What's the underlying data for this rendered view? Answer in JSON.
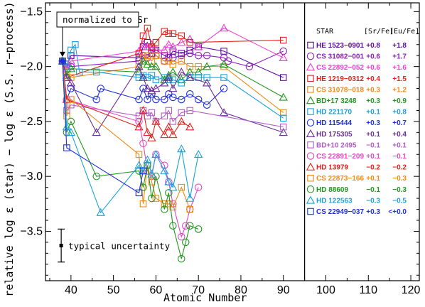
{
  "chart_data": {
    "type": "line",
    "title": "",
    "xlabel": "Atomic Number",
    "ylabel": "relative log ε (star) − log ε (S.S. r−process)",
    "xlim": [
      34,
      122
    ],
    "ylim": [
      -3.95,
      -1.42
    ],
    "xticks": [
      40,
      50,
      60,
      70,
      80,
      90,
      100,
      110,
      120
    ],
    "xtick_labels": [
      "40",
      "50",
      "60",
      "70",
      "80",
      "90",
      "100",
      "110",
      "120"
    ],
    "yticks": [
      -3.5,
      -3.0,
      -2.5,
      -2.0,
      -1.5
    ],
    "ytick_labels": [
      "−3.5",
      "−3.0",
      "−2.5",
      "−2.0",
      "−1.5"
    ],
    "divider_x": 95,
    "annotation_normalized": "normalized to Sr",
    "annotation_uncertainty": "typical uncertainty",
    "normalization_point": {
      "x": 38,
      "y": -1.95
    },
    "uncertainty_bar": {
      "x": 37.7,
      "y": -3.63,
      "err": 0.15
    },
    "legend": {
      "header_star": "STAR",
      "header_srfe": "[Sr/Fe]",
      "header_eufe": "[Eu/Fe]",
      "placement": "right"
    },
    "series": [
      {
        "name": "HE 1523−0901",
        "srfe": "+0.8",
        "eufe": "+1.8",
        "color": "#5a0aa0",
        "marker": "square",
        "points": [
          [
            38,
            -1.95
          ],
          [
            39,
            -2.0
          ],
          [
            40,
            -1.9
          ],
          [
            56,
            -1.92
          ],
          [
            57,
            -1.82
          ],
          [
            58,
            -1.78
          ],
          [
            59,
            -1.88
          ],
          [
            60,
            -1.85
          ],
          [
            62,
            -1.9
          ],
          [
            63,
            -1.92
          ],
          [
            64,
            -1.86
          ],
          [
            66,
            -1.88
          ],
          [
            68,
            -1.85
          ],
          [
            70,
            -1.82
          ],
          [
            76,
            -1.86
          ],
          [
            90,
            -2.1
          ]
        ]
      },
      {
        "name": "CS 31082−001",
        "srfe": "+0.6",
        "eufe": "+1.7",
        "color": "#8f1fbf",
        "marker": "circle",
        "points": [
          [
            38,
            -1.95
          ],
          [
            39,
            -1.98
          ],
          [
            40,
            -2.0
          ],
          [
            56,
            -1.95
          ],
          [
            57,
            -1.9
          ],
          [
            58,
            -1.92
          ],
          [
            59,
            -1.85
          ],
          [
            60,
            -1.9
          ],
          [
            62,
            -1.95
          ],
          [
            63,
            -1.92
          ],
          [
            64,
            -1.92
          ],
          [
            66,
            -1.9
          ],
          [
            68,
            -1.88
          ],
          [
            70,
            -1.9
          ],
          [
            72,
            -1.9
          ],
          [
            76,
            -1.92
          ],
          [
            77,
            -1.95
          ],
          [
            82,
            -2.0
          ],
          [
            90,
            -1.86
          ]
        ]
      },
      {
        "name": "CS 22892−052",
        "srfe": "+0.6",
        "eufe": "+1.6",
        "color": "#ee3fd2",
        "marker": "triangle",
        "points": [
          [
            38,
            -1.95
          ],
          [
            39,
            -2.02
          ],
          [
            40,
            -1.95
          ],
          [
            56,
            -1.86
          ],
          [
            57,
            -1.8
          ],
          [
            58,
            -1.82
          ],
          [
            59,
            -1.8
          ],
          [
            60,
            -1.85
          ],
          [
            62,
            -1.85
          ],
          [
            63,
            -1.8
          ],
          [
            64,
            -1.82
          ],
          [
            66,
            -1.78
          ],
          [
            68,
            -1.75
          ],
          [
            70,
            -1.82
          ],
          [
            76,
            -1.65
          ],
          [
            90,
            -1.92
          ]
        ]
      },
      {
        "name": "HE 1219−0312",
        "srfe": "+0.4",
        "eufe": "+1.5",
        "color": "#e5221c",
        "marker": "square",
        "points": [
          [
            38,
            -1.95
          ],
          [
            39,
            -2.1
          ],
          [
            56,
            -1.88
          ],
          [
            57,
            -1.72
          ],
          [
            58,
            -1.65
          ],
          [
            59,
            -1.82
          ],
          [
            60,
            -1.78
          ],
          [
            62,
            -1.68
          ],
          [
            63,
            -1.7
          ],
          [
            64,
            -1.7
          ],
          [
            66,
            -1.72
          ],
          [
            68,
            -1.78
          ],
          [
            90,
            -1.76
          ]
        ]
      },
      {
        "name": "CS 31078−018",
        "srfe": "+0.3",
        "eufe": "+1.2",
        "color": "#f08a17",
        "marker": "square",
        "points": [
          [
            38,
            -1.95
          ],
          [
            39,
            -2.05
          ],
          [
            40,
            -2.1
          ],
          [
            56,
            -2.0
          ],
          [
            57,
            -1.92
          ],
          [
            58,
            -1.9
          ],
          [
            59,
            -1.95
          ],
          [
            60,
            -1.9
          ],
          [
            62,
            -1.95
          ],
          [
            63,
            -1.95
          ],
          [
            64,
            -1.98
          ],
          [
            66,
            -1.95
          ],
          [
            68,
            -2.0
          ],
          [
            70,
            -2.0
          ],
          [
            76,
            -2.0
          ],
          [
            90,
            -2.42
          ]
        ]
      },
      {
        "name": "BD+17 3248",
        "srfe": "+0.3",
        "eufe": "+0.9",
        "color": "#22961f",
        "marker": "triangle",
        "points": [
          [
            38,
            -1.95
          ],
          [
            39,
            -2.08
          ],
          [
            40,
            -2.02
          ],
          [
            56,
            -2.05
          ],
          [
            57,
            -1.95
          ],
          [
            58,
            -1.98
          ],
          [
            59,
            -2.0
          ],
          [
            60,
            -2.0
          ],
          [
            62,
            -2.12
          ],
          [
            63,
            -2.08
          ],
          [
            64,
            -2.05
          ],
          [
            66,
            -2.12
          ],
          [
            68,
            -2.05
          ],
          [
            70,
            -2.05
          ],
          [
            72,
            -2.0
          ],
          [
            76,
            -1.98
          ],
          [
            90,
            -2.28
          ]
        ]
      },
      {
        "name": "HD 221170",
        "srfe": "+0.1",
        "eufe": "+0.8",
        "color": "#17a3de",
        "marker": "square",
        "points": [
          [
            38,
            -1.95
          ],
          [
            39,
            -2.0
          ],
          [
            40,
            -1.85
          ],
          [
            41,
            -1.8
          ],
          [
            42,
            -2.05
          ],
          [
            46,
            -2.05
          ],
          [
            56,
            -2.1
          ],
          [
            57,
            -2.08
          ],
          [
            58,
            -2.1
          ],
          [
            59,
            -2.08
          ],
          [
            60,
            -2.12
          ],
          [
            62,
            -2.1
          ],
          [
            63,
            -2.12
          ],
          [
            64,
            -2.12
          ],
          [
            66,
            -2.15
          ],
          [
            68,
            -2.1
          ],
          [
            70,
            -2.1
          ],
          [
            72,
            -2.1
          ],
          [
            76,
            -2.1
          ],
          [
            90,
            -2.47
          ]
        ]
      },
      {
        "name": "HD 115444",
        "srfe": "+0.3",
        "eufe": "+0.7",
        "color": "#1f2fe0",
        "marker": "circle",
        "points": [
          [
            38,
            -1.95
          ],
          [
            39,
            -2.3
          ],
          [
            40,
            -2.2
          ],
          [
            46,
            -2.3
          ],
          [
            47,
            -2.2
          ],
          [
            56,
            -2.3
          ],
          [
            57,
            -2.2
          ],
          [
            58,
            -2.3
          ],
          [
            59,
            -2.25
          ],
          [
            60,
            -2.3
          ],
          [
            62,
            -2.3
          ],
          [
            63,
            -2.25
          ],
          [
            64,
            -2.28
          ],
          [
            66,
            -2.3
          ],
          [
            68,
            -2.25
          ],
          [
            70,
            -2.3
          ],
          [
            72,
            -2.35
          ],
          [
            76,
            -2.2
          ]
        ]
      },
      {
        "name": "HD 175305",
        "srfe": "+0.1",
        "eufe": "+0.4",
        "color": "#6a2f96",
        "marker": "triangle",
        "points": [
          [
            38,
            -1.95
          ],
          [
            39,
            -2.1
          ],
          [
            40,
            -2.15
          ],
          [
            46,
            -2.6
          ],
          [
            56,
            -2.0
          ],
          [
            57,
            -2.1
          ],
          [
            58,
            -2.2
          ],
          [
            59,
            -2.22
          ],
          [
            60,
            -2.2
          ],
          [
            62,
            -2.15
          ],
          [
            63,
            -2.1
          ],
          [
            64,
            -2.2
          ],
          [
            66,
            -2.05
          ],
          [
            68,
            -2.1
          ],
          [
            72,
            -2.15
          ],
          [
            76,
            -2.42
          ],
          [
            90,
            -2.6
          ]
        ]
      },
      {
        "name": "BD+10 2495",
        "srfe": "−0.1",
        "eufe": "+0.1",
        "color": "#b25ec8",
        "marker": "square",
        "points": [
          [
            38,
            -1.95
          ],
          [
            39,
            -2.4
          ],
          [
            40,
            -2.35
          ],
          [
            56,
            -2.45
          ],
          [
            57,
            -2.4
          ],
          [
            58,
            -2.45
          ],
          [
            59,
            -2.42
          ],
          [
            60,
            -2.5
          ],
          [
            62,
            -2.45
          ],
          [
            63,
            -2.4
          ],
          [
            64,
            -2.5
          ],
          [
            66,
            -2.42
          ],
          [
            68,
            -2.4
          ],
          [
            90,
            -2.55
          ]
        ]
      },
      {
        "name": "CS 22891−209",
        "srfe": "+0.1",
        "eufe": "−0.1",
        "color": "#e547c5",
        "marker": "circle",
        "points": [
          [
            38,
            -1.95
          ],
          [
            39,
            -2.3
          ],
          [
            56,
            -2.5
          ],
          [
            57,
            -2.7
          ],
          [
            58,
            -2.95
          ],
          [
            59,
            -3.0
          ],
          [
            60,
            -2.8
          ],
          [
            62,
            -2.9
          ],
          [
            63,
            -3.05
          ],
          [
            64,
            -3.25
          ],
          [
            66,
            -3.55
          ],
          [
            67,
            -3.45
          ],
          [
            68,
            -3.3
          ],
          [
            70,
            -3.1
          ]
        ]
      },
      {
        "name": "HD 13979",
        "srfe": "−0.2",
        "eufe": "−0.2",
        "color": "#e5221c",
        "marker": "triangle",
        "points": [
          [
            38,
            -1.95
          ],
          [
            39,
            -2.3
          ],
          [
            56,
            -2.55
          ],
          [
            57,
            -2.4
          ],
          [
            58,
            -2.6
          ],
          [
            59,
            -2.65
          ],
          [
            60,
            -2.5
          ],
          [
            62,
            -2.62
          ],
          [
            63,
            -2.55
          ],
          [
            64,
            -2.62
          ],
          [
            66,
            -2.5
          ],
          [
            68,
            -2.55
          ]
        ]
      },
      {
        "name": "CS 22873−166",
        "srfe": "+0.1",
        "eufe": "−0.3",
        "color": "#f08a17",
        "marker": "square",
        "points": [
          [
            38,
            -1.95
          ],
          [
            39,
            -2.45
          ],
          [
            40,
            -2.3
          ],
          [
            56,
            -2.8
          ],
          [
            57,
            -3.25
          ],
          [
            58,
            -2.9
          ],
          [
            59,
            -3.05
          ],
          [
            60,
            -3.2
          ],
          [
            62,
            -3.25
          ],
          [
            63,
            -3.25
          ],
          [
            64,
            -3.28
          ],
          [
            66,
            -3.1
          ],
          [
            68,
            -3.3
          ]
        ]
      },
      {
        "name": "HD 88609",
        "srfe": "−0.1",
        "eufe": "−0.3",
        "color": "#22961f",
        "marker": "circle",
        "points": [
          [
            38,
            -1.95
          ],
          [
            39,
            -2.6
          ],
          [
            40,
            -2.5
          ],
          [
            46,
            -3.0
          ],
          [
            56,
            -2.95
          ],
          [
            57,
            -3.1
          ],
          [
            58,
            -2.9
          ],
          [
            59,
            -3.2
          ],
          [
            60,
            -3.0
          ],
          [
            62,
            -3.3
          ],
          [
            63,
            -3.15
          ],
          [
            64,
            -3.45
          ],
          [
            66,
            -3.75
          ],
          [
            67,
            -3.6
          ],
          [
            68,
            -3.45
          ],
          [
            70,
            -3.48
          ]
        ]
      },
      {
        "name": "HD 122563",
        "srfe": "−0.3",
        "eufe": "−0.5",
        "color": "#17a3de",
        "marker": "triangle",
        "points": [
          [
            38,
            -1.95
          ],
          [
            39,
            -2.55
          ],
          [
            40,
            -2.6
          ],
          [
            47,
            -3.33
          ],
          [
            56,
            -2.9
          ],
          [
            57,
            -2.95
          ],
          [
            58,
            -2.85
          ],
          [
            59,
            -2.98
          ],
          [
            60,
            -2.8
          ],
          [
            62,
            -2.95
          ],
          [
            63,
            -3.05
          ],
          [
            64,
            -3.1
          ],
          [
            66,
            -2.75
          ],
          [
            68,
            -3.2
          ],
          [
            70,
            -2.8
          ]
        ]
      },
      {
        "name": "CS 22949−037",
        "srfe": "+0.3",
        "eufe": "<+0.0",
        "color": "#1f2fe0",
        "marker": "square",
        "points": [
          [
            38,
            -1.95
          ],
          [
            39,
            -2.74
          ],
          [
            56,
            -3.15
          ],
          [
            57,
            -2.95
          ]
        ]
      }
    ]
  }
}
